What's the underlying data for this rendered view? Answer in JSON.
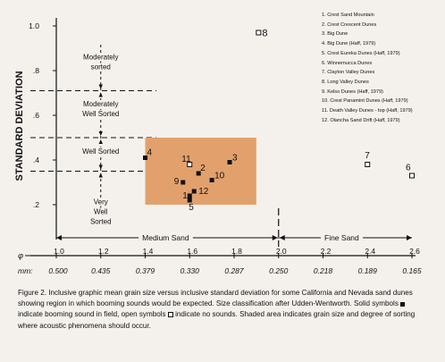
{
  "chart_data": {
    "type": "scatter",
    "title": "",
    "xlabel": "",
    "ylabel": "STANDARD DEVIATION",
    "xlim": [
      1.0,
      2.6
    ],
    "ylim": [
      0.2,
      1.0
    ],
    "x_axis_symbol": "φ",
    "secondary_axis_label": "mm:",
    "x_ticks": [
      {
        "phi": 1.0,
        "label": "1.0",
        "mm": "0.500"
      },
      {
        "phi": 1.2,
        "label": "1.2",
        "mm": "0.435"
      },
      {
        "phi": 1.4,
        "label": "1.4",
        "mm": "0.379"
      },
      {
        "phi": 1.6,
        "label": "1.6",
        "mm": "0.330"
      },
      {
        "phi": 1.8,
        "label": "1.8",
        "mm": "0.287"
      },
      {
        "phi": 2.0,
        "label": "2.0",
        "mm": "0.250"
      },
      {
        "phi": 2.2,
        "label": "2.2",
        "mm": "0.218"
      },
      {
        "phi": 2.4,
        "label": "2.4",
        "mm": "0.189"
      },
      {
        "phi": 2.6,
        "label": "2.6",
        "mm": "0.165"
      }
    ],
    "y_ticks": [
      {
        "v": 1.0,
        "label": "1.0"
      },
      {
        "v": 0.8,
        "label": ".8"
      },
      {
        "v": 0.6,
        "label": ".6"
      },
      {
        "v": 0.4,
        "label": ".4"
      },
      {
        "v": 0.2,
        "label": ".2"
      }
    ],
    "shaded_region": {
      "x": [
        1.4,
        1.9
      ],
      "y": [
        0.2,
        0.5
      ],
      "color": "#e2a16c"
    },
    "points": [
      {
        "id": "1",
        "x": 1.6,
        "y": 0.24,
        "symbol": "solid"
      },
      {
        "id": "2",
        "x": 1.64,
        "y": 0.34,
        "symbol": "solid"
      },
      {
        "id": "3",
        "x": 1.78,
        "y": 0.39,
        "symbol": "solid"
      },
      {
        "id": "4",
        "x": 1.4,
        "y": 0.41,
        "symbol": "solid"
      },
      {
        "id": "5",
        "x": 1.6,
        "y": 0.22,
        "symbol": "solid"
      },
      {
        "id": "6",
        "x": 2.6,
        "y": 0.33,
        "symbol": "open"
      },
      {
        "id": "7",
        "x": 2.4,
        "y": 0.38,
        "symbol": "open"
      },
      {
        "id": "8",
        "x": 1.91,
        "y": 0.97,
        "symbol": "open"
      },
      {
        "id": "9",
        "x": 1.57,
        "y": 0.3,
        "symbol": "solid"
      },
      {
        "id": "10",
        "x": 1.7,
        "y": 0.31,
        "symbol": "solid"
      },
      {
        "id": "11",
        "x": 1.6,
        "y": 0.38,
        "symbol": "open"
      },
      {
        "id": "12",
        "x": 1.62,
        "y": 0.26,
        "symbol": "solid"
      }
    ],
    "sorting_classes": [
      {
        "lines": [
          "Moderately",
          "sorted"
        ],
        "y_center": 0.84
      },
      {
        "lines": [
          "Moderately",
          "Well Sorted"
        ],
        "y_center": 0.63
      },
      {
        "lines": [
          "Well Sorted"
        ],
        "y_center": 0.44
      },
      {
        "lines": [
          "Very",
          "Well",
          "Sorted"
        ],
        "y_center": 0.17
      }
    ],
    "sorting_boundaries": [
      0.71,
      0.5,
      0.35
    ],
    "size_classes": [
      {
        "label": "Medium Sand",
        "x_range": [
          1.0,
          2.0
        ]
      },
      {
        "label": "Fine Sand",
        "x_range": [
          2.0,
          2.6
        ]
      }
    ]
  },
  "legend": [
    "1. Crest Sand Mountain",
    "2. Crest Crescent Dunes",
    "3. Big Dune",
    "4. Big Dune (Haff, 1979)",
    "5. Crest Eureka Dunes (Haff, 1979)",
    "6. Winnemucca Dunes",
    "7. Clayton Valley Dunes",
    "8. Long Valley Dunes",
    "9. Kelso Dunes (Haff, 1979)",
    "10. Crest Panamint Dunes (Haff, 1979)",
    "11. Death Valley Dunes - top (Haff, 1979)",
    "12. Olancha Sand Drift (Haff, 1979)"
  ],
  "caption": {
    "part1": "Figure 2. Inclusive graphic mean grain size versus inclusive standard deviation for some California and Nevada sand dunes showing region in which booming sounds would be expected. Size classification after Udden-Wentworth.  Solid symbols",
    "part2": "indicate booming sound in field, open symbols",
    "part3": "indicate no sounds. Shaded area indicates grain size and degree of sorting where acoustic phenomena should occur."
  },
  "colors": {
    "background": "#f4f1ec",
    "shade": "#e2a16c",
    "ink": "#111111"
  }
}
